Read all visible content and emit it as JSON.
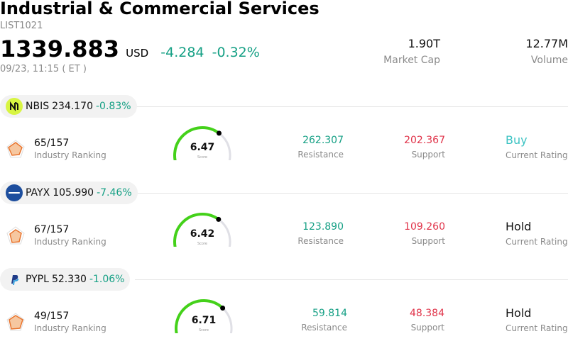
{
  "header": {
    "title": "Industrial & Commercial Services",
    "list_id": "LIST1021",
    "price": "1339.883",
    "currency": "USD",
    "change": "-4.284",
    "change_pct": "-0.32%",
    "timestamp": "09/23, 11:15  ( ET )"
  },
  "stats": {
    "market_cap_value": "1.90T",
    "market_cap_label": "Market Cap",
    "volume_value": "12.77M",
    "volume_label": "Volume"
  },
  "stocks": [
    {
      "ticker": "NBIS",
      "price": "234.170",
      "change_pct": "-0.83%",
      "logo_icon": "nebius-logo-icon",
      "rank": "65/157",
      "rank_label": "Industry Ranking",
      "score": "6.47",
      "score_value": 6.47,
      "score_label": "Score",
      "resistance": "262.307",
      "resistance_label": "Resistance",
      "support": "202.367",
      "support_label": "Support",
      "rating": "Buy",
      "rating_label": "Current Rating"
    },
    {
      "ticker": "PAYX",
      "price": "105.990",
      "change_pct": "-7.46%",
      "logo_icon": "paychex-logo-icon",
      "rank": "67/157",
      "rank_label": "Industry Ranking",
      "score": "6.42",
      "score_value": 6.42,
      "score_label": "Score",
      "resistance": "123.890",
      "resistance_label": "Resistance",
      "support": "109.260",
      "support_label": "Support",
      "rating": "Hold",
      "rating_label": "Current Rating"
    },
    {
      "ticker": "PYPL",
      "price": "52.330",
      "change_pct": "-1.06%",
      "logo_icon": "paypal-logo-icon",
      "rank": "49/157",
      "rank_label": "Industry Ranking",
      "score": "6.71",
      "score_value": 6.71,
      "score_label": "Score",
      "resistance": "59.814",
      "resistance_label": "Resistance",
      "support": "48.384",
      "support_label": "Support",
      "rating": "Hold",
      "rating_label": "Current Rating"
    }
  ],
  "colors": {
    "positive": "#16a085",
    "negative": "#e0344a",
    "buy": "#3cc3c3",
    "gauge_fill": "#44d11a",
    "gauge_track": "#e0e0e6"
  }
}
